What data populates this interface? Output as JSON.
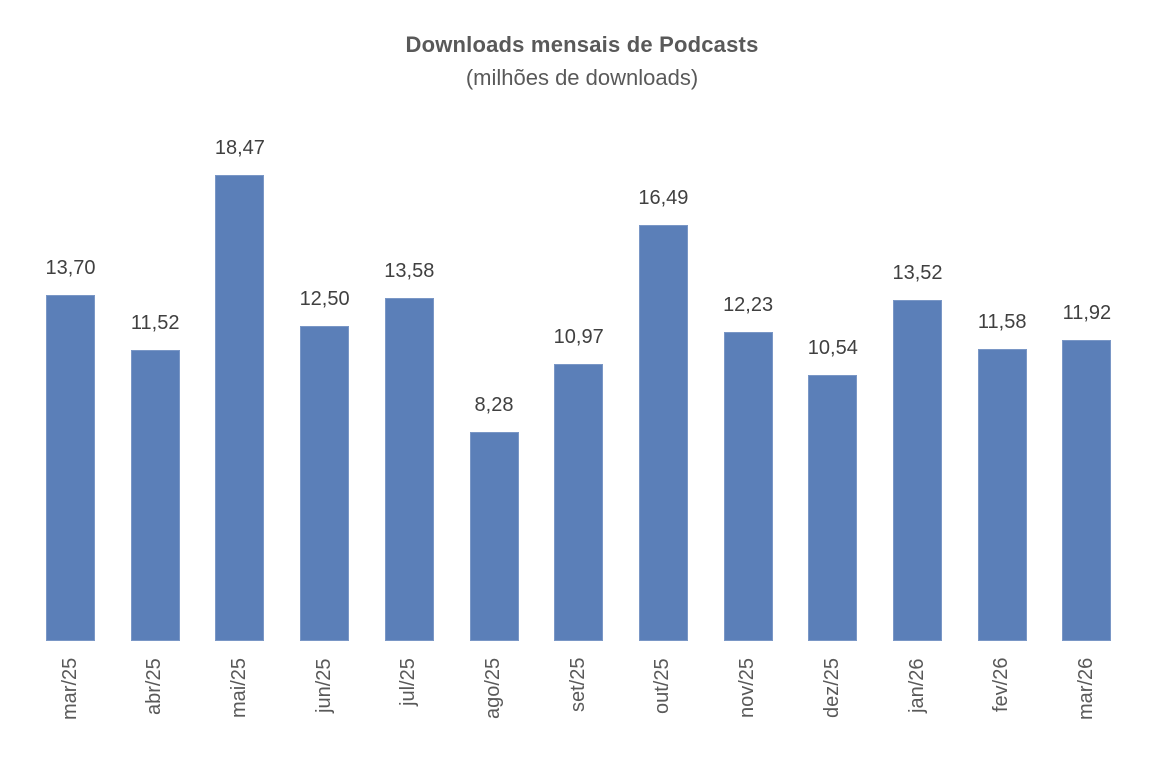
{
  "chart": {
    "title": "Downloads mensais de Podcasts",
    "subtitle": "(milhões de downloads)",
    "bar_color": "#5b7fb8",
    "categories": [
      "mar/25",
      "abr/25",
      "mai/25",
      "jun/25",
      "jul/25",
      "ago/25",
      "set/25",
      "out/25",
      "nov/25",
      "dez/25",
      "jan/26",
      "fev/26",
      "mar/26"
    ],
    "value_labels": [
      "13,70",
      "11,52",
      "18,47",
      "12,50",
      "13,58",
      "8,28",
      "10,97",
      "16,49",
      "12,23",
      "10,54",
      "13,52",
      "11,58",
      "11,92"
    ]
  },
  "chart_data": {
    "type": "bar",
    "title": "Downloads mensais de Podcasts",
    "subtitle": "(milhões de downloads)",
    "categories": [
      "mar/25",
      "abr/25",
      "mai/25",
      "jun/25",
      "jul/25",
      "ago/25",
      "set/25",
      "out/25",
      "nov/25",
      "dez/25",
      "jan/26",
      "fev/26",
      "mar/26"
    ],
    "values": [
      13.7,
      11.52,
      18.47,
      12.5,
      13.58,
      8.28,
      10.97,
      16.49,
      12.23,
      10.54,
      13.52,
      11.58,
      11.92
    ],
    "xlabel": "",
    "ylabel": "",
    "ylim": [
      0,
      18.47
    ],
    "grid": false,
    "legend": null,
    "data_labels": true,
    "x_tick_rotation": -90
  }
}
